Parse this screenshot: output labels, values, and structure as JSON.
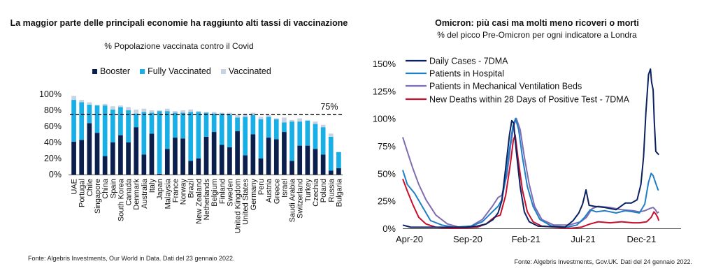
{
  "left": {
    "title": "La maggior parte delle principali economie ha raggiunto alti tassi di vaccinazione",
    "subtitle": "% Popolazione vaccinata contro il Covid",
    "source": "Fonte: Algebris Investments, Our World in Data. Dati del 23 gennaio 2022.",
    "colors": {
      "booster": "#0b1f4d",
      "fully": "#18aee6",
      "vaccinated": "#c6d3e3"
    }
  },
  "right": {
    "title": "Omicron: più casi ma molti meno ricoveri o morti",
    "subtitle": "% del picco Pre-Omicron per ogni indicatore a Londra",
    "source": "Fonte: Algebris Investments, Gov.UK. Dati del 24 gennaio 2022."
  },
  "chart_data": [
    {
      "type": "bar",
      "stacked": true,
      "categories": [
        "UAE",
        "Portugal",
        "Chile",
        "Singapore",
        "China",
        "Spain",
        "South Korea",
        "Canada",
        "Denmark",
        "Australia",
        "Italy",
        "Japan",
        "Malaysia",
        "France",
        "Norway",
        "Brazil",
        "New Zealand",
        "Netherlands",
        "Belgium",
        "Finland",
        "Sweden",
        "United Kingdom",
        "United States",
        "Germany",
        "Peru",
        "Austria",
        "Greece",
        "Israel",
        "Saudi Arabia",
        "Switzerland",
        "Turkey",
        "Czechia",
        "Poland",
        "Russia",
        "Bulgaria"
      ],
      "series": [
        {
          "name": "Booster",
          "color": "#0b1f4d",
          "values": [
            41,
            43,
            64,
            52,
            23,
            40,
            49,
            40,
            59,
            25,
            51,
            1,
            32,
            46,
            45,
            17,
            20,
            47,
            53,
            37,
            34,
            54,
            24,
            50,
            20,
            46,
            44,
            53,
            17,
            36,
            36,
            32,
            25,
            5,
            8
          ]
        },
        {
          "name": "Fully Vaccinated",
          "color": "#18aee6",
          "values": [
            52,
            47,
            23,
            34,
            63,
            41,
            35,
            40,
            17,
            53,
            26,
            78,
            47,
            31,
            32,
            61,
            58,
            30,
            23,
            39,
            41,
            17,
            48,
            24,
            49,
            26,
            25,
            12,
            49,
            30,
            31,
            31,
            34,
            42,
            20
          ]
        },
        {
          "name": "Vaccinated",
          "color": "#c6d3e3",
          "values": [
            5,
            3,
            3,
            1,
            2,
            4,
            2,
            4,
            5,
            4,
            3,
            1,
            3,
            2,
            3,
            3,
            1,
            1,
            2,
            1,
            2,
            3,
            4,
            3,
            3,
            2,
            1,
            6,
            2,
            4,
            1,
            3,
            3,
            4,
            0
          ]
        }
      ],
      "yticks": [
        "100%",
        "80%",
        "60%",
        "40%",
        "20%",
        "0%"
      ],
      "ylim": [
        0,
        100
      ],
      "threshold": {
        "value": 75,
        "label": "75%"
      },
      "legend_position": "top"
    },
    {
      "type": "line",
      "x_ticks": [
        "Apr-20",
        "Sep-20",
        "Feb-21",
        "Jul-21",
        "Dec-21"
      ],
      "y_ticks": [
        "150%",
        "125%",
        "100%",
        "75%",
        "50%",
        "25%",
        "0%"
      ],
      "ylim": [
        0,
        150
      ],
      "legend_position": "top-left",
      "series": [
        {
          "name": "Daily Cases - 7DMA",
          "color": "#0b2260",
          "points": [
            [
              "2020-03-20",
              3
            ],
            [
              "2020-04-10",
              1
            ],
            [
              "2020-06-01",
              1
            ],
            [
              "2020-09-01",
              1
            ],
            [
              "2020-10-01",
              2
            ],
            [
              "2020-10-25",
              4
            ],
            [
              "2020-11-12",
              8
            ],
            [
              "2020-11-25",
              14
            ],
            [
              "2020-12-05",
              25
            ],
            [
              "2020-12-15",
              55
            ],
            [
              "2020-12-25",
              85
            ],
            [
              "2020-12-31",
              98
            ],
            [
              "2021-01-05",
              96
            ],
            [
              "2021-01-12",
              70
            ],
            [
              "2021-01-22",
              38
            ],
            [
              "2021-02-02",
              15
            ],
            [
              "2021-02-15",
              6
            ],
            [
              "2021-03-10",
              2
            ],
            [
              "2021-05-20",
              1
            ],
            [
              "2021-06-10",
              7
            ],
            [
              "2021-06-25",
              14
            ],
            [
              "2021-07-05",
              22
            ],
            [
              "2021-07-14",
              35
            ],
            [
              "2021-07-22",
              21
            ],
            [
              "2021-08-05",
              20
            ],
            [
              "2021-09-01",
              19
            ],
            [
              "2021-10-01",
              17
            ],
            [
              "2021-10-25",
              23
            ],
            [
              "2021-11-10",
              23
            ],
            [
              "2021-11-25",
              26
            ],
            [
              "2021-12-05",
              40
            ],
            [
              "2021-12-12",
              65
            ],
            [
              "2021-12-18",
              105
            ],
            [
              "2021-12-25",
              140
            ],
            [
              "2021-12-30",
              145
            ],
            [
              "2022-01-02",
              133
            ],
            [
              "2022-01-06",
              126
            ],
            [
              "2022-01-09",
              98
            ],
            [
              "2022-01-13",
              70
            ],
            [
              "2022-01-21",
              67
            ]
          ]
        },
        {
          "name": "Patients in Hospital",
          "color": "#1f7fc6",
          "points": [
            [
              "2020-03-20",
              53
            ],
            [
              "2020-04-01",
              40
            ],
            [
              "2020-04-20",
              32
            ],
            [
              "2020-05-10",
              20
            ],
            [
              "2020-06-01",
              7
            ],
            [
              "2020-07-01",
              3
            ],
            [
              "2020-08-01",
              1
            ],
            [
              "2020-09-15",
              2
            ],
            [
              "2020-10-15",
              6
            ],
            [
              "2020-11-10",
              15
            ],
            [
              "2020-11-25",
              20
            ],
            [
              "2020-12-05",
              26
            ],
            [
              "2020-12-15",
              45
            ],
            [
              "2020-12-25",
              72
            ],
            [
              "2021-01-03",
              93
            ],
            [
              "2021-01-10",
              100
            ],
            [
              "2021-01-18",
              90
            ],
            [
              "2021-01-28",
              65
            ],
            [
              "2021-02-10",
              38
            ],
            [
              "2021-02-25",
              20
            ],
            [
              "2021-03-15",
              8
            ],
            [
              "2021-04-15",
              2
            ],
            [
              "2021-05-25",
              1
            ],
            [
              "2021-06-20",
              3
            ],
            [
              "2021-07-10",
              10
            ],
            [
              "2021-07-25",
              17
            ],
            [
              "2021-08-10",
              15
            ],
            [
              "2021-09-01",
              16
            ],
            [
              "2021-10-01",
              14
            ],
            [
              "2021-10-25",
              16
            ],
            [
              "2021-11-15",
              15
            ],
            [
              "2021-12-01",
              14
            ],
            [
              "2021-12-15",
              22
            ],
            [
              "2021-12-25",
              42
            ],
            [
              "2022-01-01",
              50
            ],
            [
              "2022-01-06",
              48
            ],
            [
              "2022-01-12",
              42
            ],
            [
              "2022-01-19",
              35
            ],
            [
              "2022-01-21",
              35
            ]
          ]
        },
        {
          "name": "Patients in Mechanical Ventilation Beds",
          "color": "#7e6db3",
          "points": [
            [
              "2020-03-20",
              83
            ],
            [
              "2020-04-01",
              70
            ],
            [
              "2020-04-15",
              55
            ],
            [
              "2020-05-01",
              40
            ],
            [
              "2020-05-20",
              26
            ],
            [
              "2020-06-15",
              12
            ],
            [
              "2020-07-15",
              4
            ],
            [
              "2020-08-15",
              1
            ],
            [
              "2020-09-15",
              2
            ],
            [
              "2020-10-15",
              8
            ],
            [
              "2020-11-10",
              20
            ],
            [
              "2020-11-25",
              28
            ],
            [
              "2020-12-05",
              30
            ],
            [
              "2020-12-18",
              48
            ],
            [
              "2020-12-28",
              75
            ],
            [
              "2021-01-05",
              93
            ],
            [
              "2021-01-12",
              100
            ],
            [
              "2021-01-22",
              90
            ],
            [
              "2021-02-02",
              65
            ],
            [
              "2021-02-15",
              40
            ],
            [
              "2021-03-01",
              20
            ],
            [
              "2021-03-20",
              8
            ],
            [
              "2021-04-20",
              3
            ],
            [
              "2021-05-30",
              3
            ],
            [
              "2021-06-30",
              6
            ],
            [
              "2021-07-15",
              10
            ],
            [
              "2021-07-30",
              18
            ],
            [
              "2021-08-15",
              20
            ],
            [
              "2021-09-15",
              19
            ],
            [
              "2021-10-15",
              17
            ],
            [
              "2021-11-15",
              16
            ],
            [
              "2021-12-01",
              15
            ],
            [
              "2021-12-15",
              16
            ],
            [
              "2021-12-28",
              18
            ],
            [
              "2022-01-06",
              19
            ],
            [
              "2022-01-12",
              17
            ],
            [
              "2022-01-17",
              14
            ],
            [
              "2022-01-21",
              15
            ]
          ]
        },
        {
          "name": "New Deaths within 28 Days of Positive Test - 7DMA",
          "color": "#c8102e",
          "points": [
            [
              "2020-03-20",
              45
            ],
            [
              "2020-04-01",
              34
            ],
            [
              "2020-04-15",
              22
            ],
            [
              "2020-05-01",
              10
            ],
            [
              "2020-05-20",
              4
            ],
            [
              "2020-06-15",
              1
            ],
            [
              "2020-08-01",
              0
            ],
            [
              "2020-10-01",
              1
            ],
            [
              "2020-10-25",
              4
            ],
            [
              "2020-11-15",
              10
            ],
            [
              "2020-12-01",
              12
            ],
            [
              "2020-12-15",
              30
            ],
            [
              "2020-12-28",
              60
            ],
            [
              "2021-01-04",
              80
            ],
            [
              "2021-01-09",
              85
            ],
            [
              "2021-01-16",
              65
            ],
            [
              "2021-01-28",
              35
            ],
            [
              "2021-02-10",
              15
            ],
            [
              "2021-02-25",
              6
            ],
            [
              "2021-03-20",
              2
            ],
            [
              "2021-06-01",
              0
            ],
            [
              "2021-07-01",
              1
            ],
            [
              "2021-07-25",
              4
            ],
            [
              "2021-08-15",
              6
            ],
            [
              "2021-09-15",
              5
            ],
            [
              "2021-10-15",
              6
            ],
            [
              "2021-11-15",
              5
            ],
            [
              "2021-12-01",
              5
            ],
            [
              "2021-12-20",
              6
            ],
            [
              "2022-01-01",
              10
            ],
            [
              "2022-01-08",
              15
            ],
            [
              "2022-01-13",
              13
            ],
            [
              "2022-01-18",
              10
            ],
            [
              "2022-01-21",
              7
            ]
          ]
        }
      ]
    }
  ]
}
